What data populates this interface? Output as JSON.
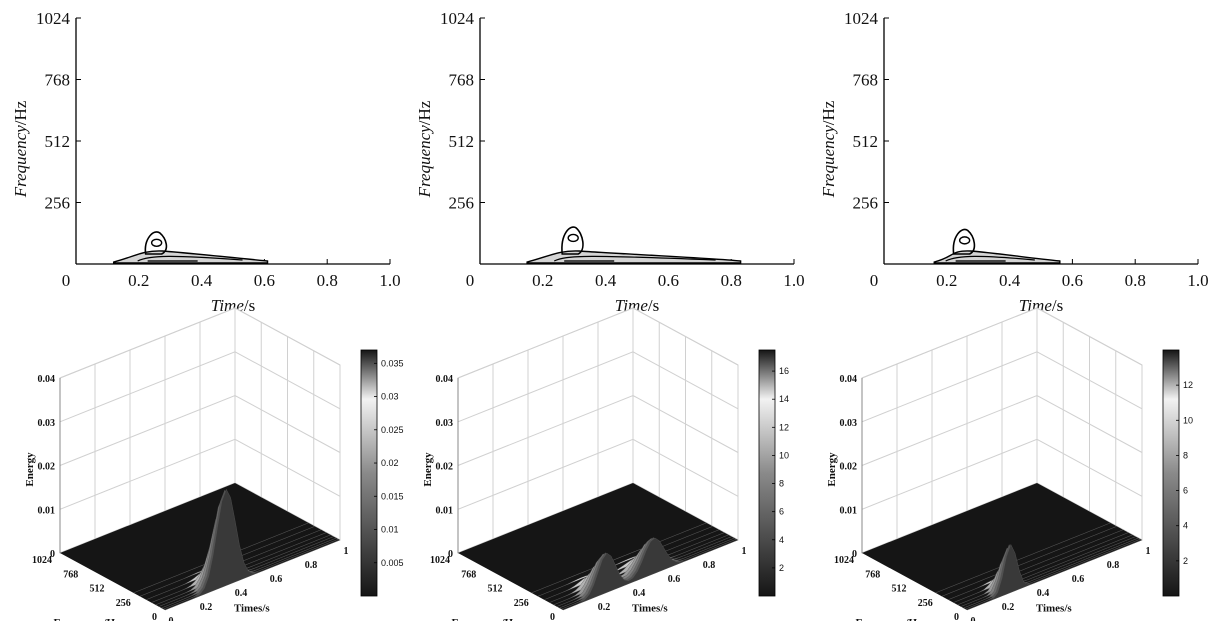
{
  "chart_data": [
    {
      "type": "contour",
      "xlabel": {
        "italic": "Time",
        "unit": "/s"
      },
      "ylabel": {
        "italic": "Frequency",
        "unit": "/Hz"
      },
      "xlim": [
        0,
        1.0
      ],
      "ylim": [
        0,
        1024
      ],
      "xticks": [
        "0",
        "0.2",
        "0.4",
        "0.6",
        "0.8",
        "1.0"
      ],
      "yticks": [
        "256",
        "512",
        "768",
        "1024"
      ],
      "peak": {
        "t": 0.26,
        "f": 80
      },
      "energy_span": {
        "t_start": 0.12,
        "t_end": 0.61
      }
    },
    {
      "type": "contour",
      "xlabel": {
        "italic": "Time",
        "unit": "/s"
      },
      "ylabel": {
        "italic": "Frequency",
        "unit": "/Hz"
      },
      "xlim": [
        0,
        1.0
      ],
      "ylim": [
        0,
        1024
      ],
      "xticks": [
        "0",
        "0.2",
        "0.4",
        "0.6",
        "0.8",
        "1.0"
      ],
      "yticks": [
        "256",
        "512",
        "768",
        "1024"
      ],
      "peak": {
        "t": 0.3,
        "f": 100
      },
      "energy_span": {
        "t_start": 0.15,
        "t_end": 0.83
      }
    },
    {
      "type": "contour",
      "xlabel": {
        "italic": "Time",
        "unit": "/s"
      },
      "ylabel": {
        "italic": "Frequency",
        "unit": "/Hz"
      },
      "xlim": [
        0,
        1.0
      ],
      "ylim": [
        0,
        1024
      ],
      "xticks": [
        "0",
        "0.2",
        "0.4",
        "0.6",
        "0.8",
        "1.0"
      ],
      "yticks": [
        "256",
        "512",
        "768",
        "1024"
      ],
      "peak": {
        "t": 0.26,
        "f": 90
      },
      "energy_span": {
        "t_start": 0.16,
        "t_end": 0.56
      }
    },
    {
      "type": "surface3d",
      "xlabel": "Times/s",
      "ylabel": "Frequency/Hz",
      "zlabel": "Energy",
      "xticks": [
        "0",
        "0.2",
        "0.4",
        "0.6",
        "0.8",
        "1"
      ],
      "yticks": [
        "0",
        "256",
        "512",
        "768",
        "1024"
      ],
      "zticks": [
        "0",
        "0.01",
        "0.02",
        "0.03",
        "0.04"
      ],
      "zlim": [
        0,
        0.04
      ],
      "colorbar": {
        "ticks": [
          "0.005",
          "0.01",
          "0.015",
          "0.02",
          "0.025",
          "0.03",
          "0.035"
        ],
        "min": 0,
        "max": 0.037
      },
      "peak": {
        "t": 0.35,
        "f": 60,
        "energy": 0.022
      },
      "shape": "single-peak"
    },
    {
      "type": "surface3d",
      "xlabel": "Times/s",
      "ylabel": "Frequency/Hz",
      "zlabel": "Energy",
      "xticks": [
        "0.2",
        "0.4",
        "0.6",
        "0.8",
        "1"
      ],
      "yticks": [
        "0",
        "256",
        "512",
        "768",
        "1024"
      ],
      "zticks": [
        "0",
        "0.01",
        "0.02",
        "0.03",
        "0.04"
      ],
      "zlim": [
        0,
        0.04
      ],
      "colorbar": {
        "ticks": [
          "2",
          "4",
          "6",
          "8",
          "10",
          "12",
          "14",
          "16"
        ],
        "min": 0,
        "max": 17.5
      },
      "peak": {
        "t": 0.35,
        "f": 60,
        "energy": 0.009
      },
      "shape": "double-peak"
    },
    {
      "type": "surface3d",
      "xlabel": "Times/s",
      "ylabel": "Frequency/Hz",
      "zlabel": "Energy",
      "xticks": [
        "0",
        "0.2",
        "0.4",
        "0.6",
        "0.8",
        "1"
      ],
      "yticks": [
        "0",
        "256",
        "512",
        "768",
        "1024"
      ],
      "zticks": [
        "0",
        "0.01",
        "0.02",
        "0.03",
        "0.04"
      ],
      "zlim": [
        0,
        0.04
      ],
      "colorbar": {
        "ticks": [
          "2",
          "4",
          "6",
          "8",
          "10",
          "12"
        ],
        "min": 0,
        "max": 14
      },
      "peak": {
        "t": 0.25,
        "f": 60,
        "energy": 0.011
      },
      "shape": "narrow-peak"
    }
  ]
}
